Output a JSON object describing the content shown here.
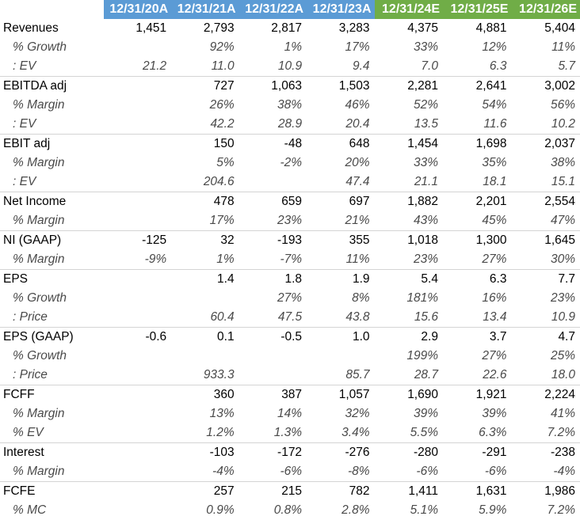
{
  "colors": {
    "actual_header": "#5b9bd5",
    "estimate_header": "#70ad47"
  },
  "chart_data": {
    "type": "table",
    "columns": [
      {
        "label": "",
        "kind": "label"
      },
      {
        "label": "12/31/20A",
        "kind": "actual"
      },
      {
        "label": "12/31/21A",
        "kind": "actual"
      },
      {
        "label": "12/31/22A",
        "kind": "actual"
      },
      {
        "label": "12/31/23A",
        "kind": "actual"
      },
      {
        "label": "12/31/24E",
        "kind": "estimate"
      },
      {
        "label": "12/31/25E",
        "kind": "estimate"
      },
      {
        "label": "12/31/26E",
        "kind": "estimate"
      }
    ],
    "rows": [
      {
        "label": "Revenues",
        "sub": false,
        "values": [
          "1,451",
          "2,793",
          "2,817",
          "3,283",
          "4,375",
          "4,881",
          "5,404"
        ]
      },
      {
        "label": "% Growth",
        "sub": true,
        "values": [
          "",
          "92%",
          "1%",
          "17%",
          "33%",
          "12%",
          "11%"
        ]
      },
      {
        "label": ": EV",
        "sub": true,
        "values": [
          "21.2",
          "11.0",
          "10.9",
          "9.4",
          "7.0",
          "6.3",
          "5.7"
        ]
      },
      {
        "label": "EBITDA adj",
        "sub": false,
        "values": [
          "",
          "727",
          "1,063",
          "1,503",
          "2,281",
          "2,641",
          "3,002"
        ]
      },
      {
        "label": "% Margin",
        "sub": true,
        "values": [
          "",
          "26%",
          "38%",
          "46%",
          "52%",
          "54%",
          "56%"
        ]
      },
      {
        "label": ": EV",
        "sub": true,
        "values": [
          "",
          "42.2",
          "28.9",
          "20.4",
          "13.5",
          "11.6",
          "10.2"
        ]
      },
      {
        "label": "EBIT adj",
        "sub": false,
        "values": [
          "",
          "150",
          "-48",
          "648",
          "1,454",
          "1,698",
          "2,037"
        ]
      },
      {
        "label": "% Margin",
        "sub": true,
        "values": [
          "",
          "5%",
          "-2%",
          "20%",
          "33%",
          "35%",
          "38%"
        ]
      },
      {
        "label": ": EV",
        "sub": true,
        "values": [
          "",
          "204.6",
          "",
          "47.4",
          "21.1",
          "18.1",
          "15.1"
        ]
      },
      {
        "label": "Net Income",
        "sub": false,
        "values": [
          "",
          "478",
          "659",
          "697",
          "1,882",
          "2,201",
          "2,554"
        ]
      },
      {
        "label": "% Margin",
        "sub": true,
        "values": [
          "",
          "17%",
          "23%",
          "21%",
          "43%",
          "45%",
          "47%"
        ]
      },
      {
        "label": "NI (GAAP)",
        "sub": false,
        "values": [
          "-125",
          "32",
          "-193",
          "355",
          "1,018",
          "1,300",
          "1,645"
        ]
      },
      {
        "label": "% Margin",
        "sub": true,
        "values": [
          "-9%",
          "1%",
          "-7%",
          "11%",
          "23%",
          "27%",
          "30%"
        ]
      },
      {
        "label": "EPS",
        "sub": false,
        "values": [
          "",
          "1.4",
          "1.8",
          "1.9",
          "5.4",
          "6.3",
          "7.7"
        ]
      },
      {
        "label": "% Growth",
        "sub": true,
        "values": [
          "",
          "",
          "27%",
          "8%",
          "181%",
          "16%",
          "23%"
        ]
      },
      {
        "label": ": Price",
        "sub": true,
        "values": [
          "",
          "60.4",
          "47.5",
          "43.8",
          "15.6",
          "13.4",
          "10.9"
        ]
      },
      {
        "label": "EPS (GAAP)",
        "sub": false,
        "values": [
          "-0.6",
          "0.1",
          "-0.5",
          "1.0",
          "2.9",
          "3.7",
          "4.7"
        ]
      },
      {
        "label": "% Growth",
        "sub": true,
        "values": [
          "",
          "",
          "",
          "",
          "199%",
          "27%",
          "25%"
        ]
      },
      {
        "label": ": Price",
        "sub": true,
        "values": [
          "",
          "933.3",
          "",
          "85.7",
          "28.7",
          "22.6",
          "18.0"
        ]
      },
      {
        "label": "FCFF",
        "sub": false,
        "values": [
          "",
          "360",
          "387",
          "1,057",
          "1,690",
          "1,921",
          "2,224"
        ]
      },
      {
        "label": "% Margin",
        "sub": true,
        "values": [
          "",
          "13%",
          "14%",
          "32%",
          "39%",
          "39%",
          "41%"
        ]
      },
      {
        "label": "% EV",
        "sub": true,
        "values": [
          "",
          "1.2%",
          "1.3%",
          "3.4%",
          "5.5%",
          "6.3%",
          "7.2%"
        ]
      },
      {
        "label": "Interest",
        "sub": false,
        "values": [
          "",
          "-103",
          "-172",
          "-276",
          "-280",
          "-291",
          "-238"
        ]
      },
      {
        "label": "% Margin",
        "sub": true,
        "values": [
          "",
          "-4%",
          "-6%",
          "-8%",
          "-6%",
          "-6%",
          "-4%"
        ]
      },
      {
        "label": "FCFE",
        "sub": false,
        "values": [
          "",
          "257",
          "215",
          "782",
          "1,411",
          "1,631",
          "1,986"
        ]
      },
      {
        "label": "% MC",
        "sub": true,
        "values": [
          "",
          "0.9%",
          "0.8%",
          "2.8%",
          "5.1%",
          "5.9%",
          "7.2%"
        ]
      }
    ]
  }
}
